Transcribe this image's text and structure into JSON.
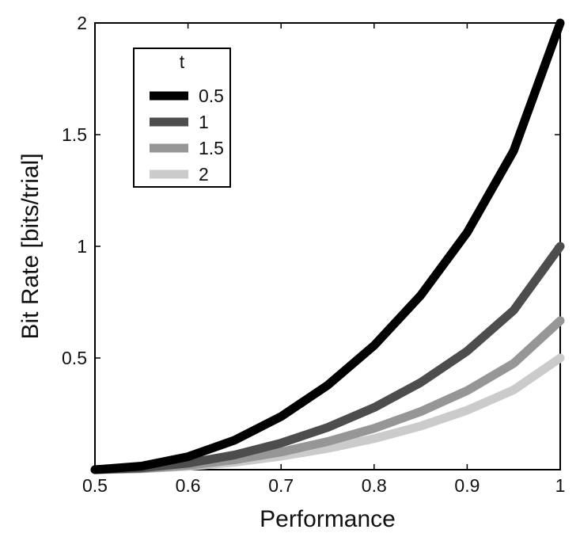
{
  "chart_data": {
    "type": "line",
    "title": "",
    "xlabel": "Performance",
    "ylabel": "Bit Rate [bits/trial]",
    "xlim": [
      0.5,
      1.0
    ],
    "ylim": [
      0,
      2
    ],
    "xticks": [
      0.5,
      0.6,
      0.7,
      0.8,
      0.9,
      1.0
    ],
    "xtick_labels": [
      "0.5",
      "0.6",
      "0.7",
      "0.8",
      "0.9",
      "1"
    ],
    "yticks": [
      0.5,
      1.0,
      1.5,
      2.0
    ],
    "ytick_labels": [
      "0.5",
      "1",
      "1.5",
      "2"
    ],
    "grid": false,
    "legend": {
      "title": "t",
      "placement": "top-left"
    },
    "x": [
      0.5,
      0.55,
      0.6,
      0.65,
      0.7,
      0.75,
      0.8,
      0.85,
      0.9,
      0.95,
      1.0
    ],
    "series": [
      {
        "name": "0.5",
        "color": "#000000",
        "values": [
          0,
          0.016,
          0.058,
          0.132,
          0.238,
          0.378,
          0.556,
          0.78,
          1.062,
          1.428,
          2.0
        ]
      },
      {
        "name": "1",
        "color": "#4d4d4d",
        "values": [
          0,
          0.008,
          0.029,
          0.066,
          0.119,
          0.189,
          0.278,
          0.39,
          0.531,
          0.714,
          1.0
        ]
      },
      {
        "name": "1.5",
        "color": "#969696",
        "values": [
          0,
          0.005,
          0.019,
          0.044,
          0.079,
          0.126,
          0.185,
          0.26,
          0.354,
          0.476,
          0.667
        ]
      },
      {
        "name": "2",
        "color": "#cbcbcb",
        "values": [
          0,
          0.004,
          0.015,
          0.033,
          0.06,
          0.095,
          0.139,
          0.195,
          0.266,
          0.357,
          0.5
        ]
      }
    ]
  }
}
